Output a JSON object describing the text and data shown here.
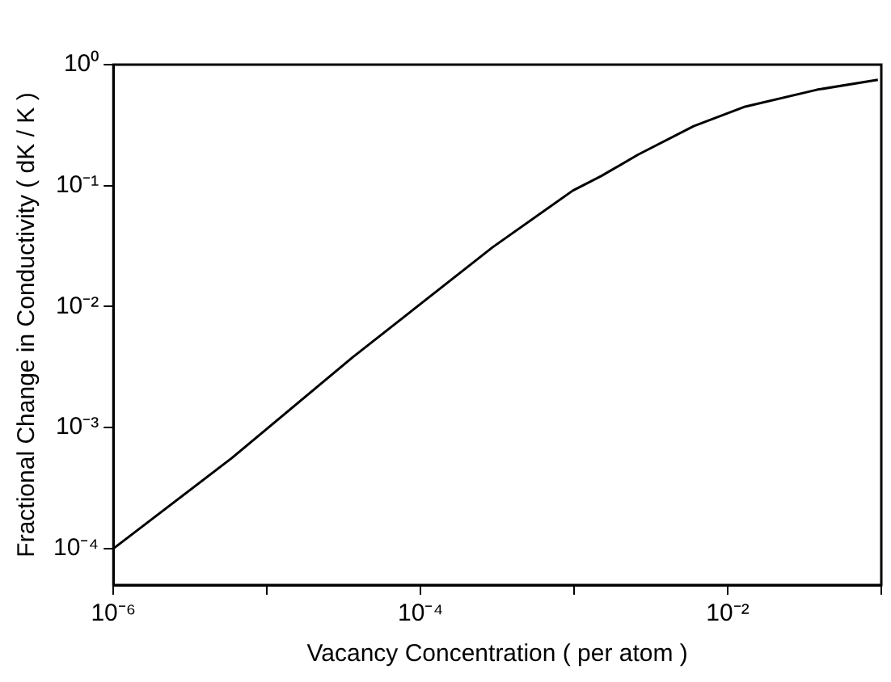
{
  "chart_data": {
    "type": "line",
    "xlabel": "Vacancy Concentration ( per atom )",
    "ylabel": "Fractional Change in Conductivity ( dK / K )",
    "series": [
      {
        "color": "#000000",
        "x": [
          1e-06,
          5.9e-06,
          3.6e-05,
          0.000295,
          0.00098,
          0.0015,
          0.0026,
          0.006,
          0.013,
          0.038,
          0.095
        ],
        "values": [
          0.0001,
          0.00056,
          0.0038,
          0.031,
          0.091,
          0.12,
          0.18,
          0.31,
          0.45,
          0.62,
          0.75
        ]
      }
    ],
    "log": "xy",
    "xlim": [
      1e-06,
      0.1
    ],
    "ylim": [
      5e-05,
      1
    ],
    "xticks": [
      {
        "value": 1e-06,
        "label": "10⁻⁶"
      },
      {
        "value": 1e-05,
        "label": null
      },
      {
        "value": 0.0001,
        "label": "10⁻⁴"
      },
      {
        "value": 0.001,
        "label": null
      },
      {
        "value": 0.01,
        "label": "10⁻²"
      },
      {
        "value": 0.1,
        "label": null
      }
    ],
    "yticks": [
      {
        "value": 0.0001,
        "label": "10⁻⁴"
      },
      {
        "value": 0.001,
        "label": "10⁻³"
      },
      {
        "value": 0.01,
        "label": "10⁻²"
      },
      {
        "value": 0.1,
        "label": "10⁻¹"
      },
      {
        "value": 1,
        "label": "10⁰"
      }
    ],
    "grid": false,
    "legend": false,
    "marker": "none",
    "line_style": "solid"
  }
}
